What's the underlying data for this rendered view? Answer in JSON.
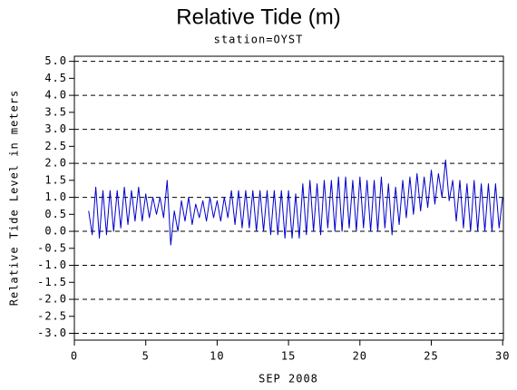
{
  "chart_data": {
    "type": "line",
    "title": "Relative Tide (m)",
    "subtitle": "station=OYST",
    "x_label": "SEP 2008",
    "y_label": "Relative Tide Level in meters",
    "x": [
      1,
      1.25,
      1.5,
      1.75,
      2,
      2.25,
      2.5,
      2.75,
      3,
      3.25,
      3.5,
      3.75,
      4,
      4.25,
      4.5,
      4.75,
      5,
      5.25,
      5.5,
      5.75,
      6,
      6.25,
      6.5,
      6.75,
      7,
      7.25,
      7.5,
      7.75,
      8,
      8.25,
      8.5,
      8.75,
      9,
      9.25,
      9.5,
      9.75,
      10,
      10.25,
      10.5,
      10.75,
      11,
      11.25,
      11.5,
      11.75,
      12,
      12.25,
      12.5,
      12.75,
      13,
      13.25,
      13.5,
      13.75,
      14,
      14.25,
      14.5,
      14.75,
      15,
      15.25,
      15.5,
      15.75,
      16,
      16.25,
      16.5,
      16.75,
      17,
      17.25,
      17.5,
      17.75,
      18,
      18.25,
      18.5,
      18.75,
      19,
      19.25,
      19.5,
      19.75,
      20,
      20.25,
      20.5,
      20.75,
      21,
      21.25,
      21.5,
      21.75,
      22,
      22.25,
      22.5,
      22.75,
      23,
      23.25,
      23.5,
      23.75,
      24,
      24.25,
      24.5,
      24.75,
      25,
      25.25,
      25.5,
      25.75,
      26,
      26.25,
      26.5,
      26.75,
      27,
      27.25,
      27.5,
      27.75,
      28,
      28.25,
      28.5,
      28.75,
      29,
      29.25,
      29.5,
      29.75,
      30
    ],
    "series": [
      {
        "name": "tide",
        "color": "#0000cc",
        "values": [
          0.6,
          -0.1,
          1.3,
          -0.2,
          1.2,
          -0.1,
          1.2,
          0.0,
          1.2,
          0.1,
          1.3,
          0.2,
          1.2,
          0.3,
          1.3,
          0.3,
          1.1,
          0.4,
          1.0,
          0.5,
          1.0,
          0.4,
          1.5,
          -0.4,
          0.6,
          0.0,
          0.9,
          0.3,
          1.0,
          0.2,
          0.8,
          0.4,
          0.9,
          0.3,
          1.0,
          0.4,
          0.9,
          0.3,
          1.0,
          0.4,
          1.2,
          0.2,
          1.2,
          0.1,
          1.2,
          0.1,
          1.2,
          0.0,
          1.2,
          0.0,
          1.2,
          -0.1,
          1.2,
          -0.1,
          1.2,
          -0.2,
          1.2,
          -0.2,
          1.1,
          -0.2,
          1.4,
          -0.1,
          1.5,
          0.0,
          1.4,
          -0.1,
          1.5,
          0.1,
          1.5,
          0.0,
          1.6,
          0.0,
          1.6,
          0.1,
          1.5,
          0.0,
          1.6,
          0.1,
          1.5,
          0.0,
          1.5,
          0.0,
          1.6,
          0.1,
          1.4,
          -0.1,
          1.3,
          0.2,
          1.5,
          0.4,
          1.6,
          0.5,
          1.7,
          0.6,
          1.6,
          0.7,
          1.8,
          0.8,
          1.7,
          1.0,
          2.1,
          0.9,
          1.5,
          0.3,
          1.5,
          0.1,
          1.4,
          0.0,
          1.5,
          0.0,
          1.4,
          0.0,
          1.4,
          0.0,
          1.4,
          0.1,
          1.0
        ]
      }
    ],
    "xlim": [
      0,
      30.05
    ],
    "ylim": [
      -3.2,
      5.15
    ],
    "xticks": [
      0,
      5,
      10,
      15,
      20,
      25,
      30
    ],
    "yticks": [
      {
        "value": 5,
        "label": "5.0"
      },
      {
        "value": 4.5,
        "label": "4.5"
      },
      {
        "value": 4,
        "label": "4.0"
      },
      {
        "value": 3.5,
        "label": "3.5"
      },
      {
        "value": 3,
        "label": "3.0"
      },
      {
        "value": 2.5,
        "label": "2.5"
      },
      {
        "value": 2,
        "label": "2.0"
      },
      {
        "value": 1.5,
        "label": "1.5"
      },
      {
        "value": 1,
        "label": "1.0"
      },
      {
        "value": 0.5,
        "label": "0.5"
      },
      {
        "value": 0,
        "label": "0.0"
      },
      {
        "value": -0.5,
        "label": "-0.5"
      },
      {
        "value": -1,
        "label": "-1.0"
      },
      {
        "value": -1.5,
        "label": "-1.5"
      },
      {
        "value": -2,
        "label": "-2.0"
      },
      {
        "value": -2.5,
        "label": "-2.5"
      },
      {
        "value": -3,
        "label": "-3.0"
      }
    ],
    "grid_ticks": [
      5,
      4,
      3,
      2,
      1,
      0,
      -1,
      -2,
      -3
    ]
  }
}
